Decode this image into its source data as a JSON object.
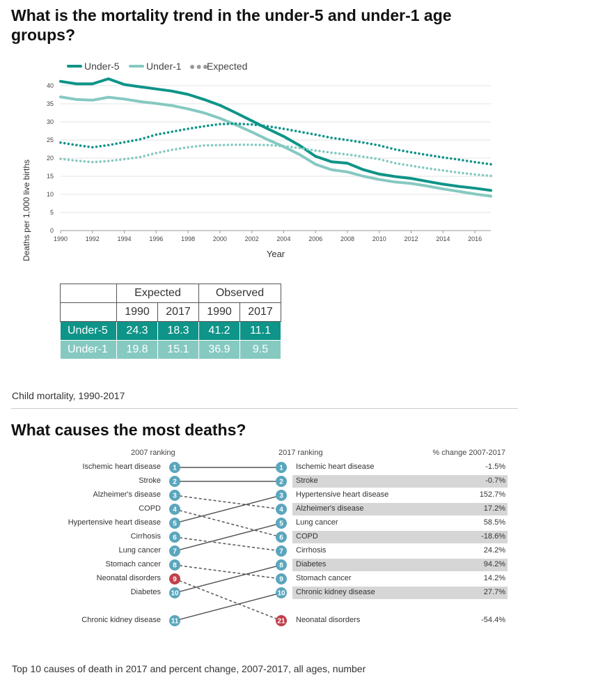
{
  "mortality": {
    "title": "What is the mortality trend in the under-5 and under-1 age groups?",
    "caption": "Child mortality, 1990-2017",
    "legend": {
      "under5": "Under-5",
      "under1": "Under-1",
      "expected": "Expected"
    },
    "colors": {
      "under5": "#0e9488",
      "under1": "#86c9c1",
      "expected": "#999999"
    },
    "table": {
      "group_expected": "Expected",
      "group_observed": "Observed",
      "years": [
        "1990",
        "2017",
        "1990",
        "2017"
      ],
      "rows": [
        {
          "label": "Under-5",
          "values": [
            "24.3",
            "18.3",
            "41.2",
            "11.1"
          ]
        },
        {
          "label": "Under-1",
          "values": [
            "19.8",
            "15.1",
            "36.9",
            "9.5"
          ]
        }
      ]
    }
  },
  "chart_data": {
    "type": "line",
    "xlabel": "Year",
    "ylabel": "Deaths per 1,000 live births",
    "xlim": [
      1990,
      2017
    ],
    "ylim": [
      0,
      40
    ],
    "yticks": [
      0,
      5,
      10,
      15,
      20,
      25,
      30,
      35,
      40
    ],
    "xticks": [
      1990,
      1992,
      1994,
      1996,
      1998,
      2000,
      2002,
      2004,
      2006,
      2008,
      2010,
      2012,
      2014,
      2016
    ],
    "grid": true,
    "legend_position": "top-left",
    "x": [
      1990,
      1991,
      1992,
      1993,
      1994,
      1995,
      1996,
      1997,
      1998,
      1999,
      2000,
      2001,
      2002,
      2003,
      2004,
      2005,
      2006,
      2007,
      2008,
      2009,
      2010,
      2011,
      2012,
      2013,
      2014,
      2015,
      2016,
      2017
    ],
    "series": [
      {
        "name": "Under-5",
        "style": "solid",
        "values": [
          41.2,
          40.5,
          40.5,
          41.9,
          40.3,
          39.7,
          39.1,
          38.5,
          37.6,
          36.2,
          34.6,
          32.5,
          30.3,
          28.1,
          26.0,
          23.5,
          20.5,
          19.0,
          18.6,
          16.8,
          15.6,
          14.9,
          14.4,
          13.6,
          12.8,
          12.2,
          11.7,
          11.1
        ]
      },
      {
        "name": "Under-1",
        "style": "solid",
        "values": [
          36.9,
          36.2,
          36.0,
          36.8,
          36.3,
          35.6,
          35.1,
          34.5,
          33.6,
          32.5,
          31.0,
          29.2,
          27.2,
          25.1,
          23.2,
          21.0,
          18.3,
          16.8,
          16.2,
          15.0,
          14.1,
          13.4,
          13.0,
          12.3,
          11.5,
          10.8,
          10.1,
          9.5
        ]
      },
      {
        "name": "Expected",
        "style": "dotted",
        "group": "Under-5",
        "values": [
          24.3,
          23.6,
          23.0,
          23.6,
          24.4,
          25.2,
          26.5,
          27.3,
          28.1,
          28.8,
          29.4,
          29.5,
          29.3,
          28.8,
          28.1,
          27.3,
          26.5,
          25.6,
          25.0,
          24.3,
          23.5,
          22.4,
          21.6,
          20.9,
          20.2,
          19.6,
          18.9,
          18.3
        ]
      },
      {
        "name": "Expected",
        "style": "dotted",
        "group": "Under-1",
        "values": [
          19.8,
          19.3,
          18.9,
          19.2,
          19.7,
          20.3,
          21.4,
          22.3,
          23.0,
          23.5,
          23.6,
          23.7,
          23.7,
          23.6,
          23.3,
          22.8,
          22.1,
          21.5,
          21.0,
          20.4,
          19.7,
          18.6,
          17.9,
          17.2,
          16.6,
          16.0,
          15.5,
          15.1
        ]
      }
    ]
  },
  "causes": {
    "title": "What causes the most deaths?",
    "caption": "Top 10 causes of death in 2017 and percent change, 2007-2017, all ages, number",
    "header_2007": "2007 ranking",
    "header_2017": "2017 ranking",
    "header_pct": "% change 2007-2017",
    "colors": {
      "node": "#5aa6bd",
      "node_highlight": "#c0404a"
    },
    "left": [
      {
        "name": "Ischemic heart disease",
        "rank": "1"
      },
      {
        "name": "Stroke",
        "rank": "2"
      },
      {
        "name": "Alzheimer's disease",
        "rank": "3"
      },
      {
        "name": "COPD",
        "rank": "4"
      },
      {
        "name": "Hypertensive heart disease",
        "rank": "5"
      },
      {
        "name": "Cirrhosis",
        "rank": "6"
      },
      {
        "name": "Lung cancer",
        "rank": "7"
      },
      {
        "name": "Stomach cancer",
        "rank": "8"
      },
      {
        "name": "Neonatal disorders",
        "rank": "9",
        "highlight": true
      },
      {
        "name": "Diabetes",
        "rank": "10"
      },
      {
        "name": "Chronic kidney disease",
        "rank": "11"
      }
    ],
    "right": [
      {
        "name": "Ischemic heart disease",
        "rank": "1",
        "pct": "-1.5%"
      },
      {
        "name": "Stroke",
        "rank": "2",
        "pct": "-0.7%"
      },
      {
        "name": "Hypertensive heart disease",
        "rank": "3",
        "pct": "152.7%"
      },
      {
        "name": "Alzheimer's disease",
        "rank": "4",
        "pct": "17.2%"
      },
      {
        "name": "Lung cancer",
        "rank": "5",
        "pct": "58.5%"
      },
      {
        "name": "COPD",
        "rank": "6",
        "pct": "-18.6%"
      },
      {
        "name": "Cirrhosis",
        "rank": "7",
        "pct": "24.2%"
      },
      {
        "name": "Diabetes",
        "rank": "8",
        "pct": "94.2%"
      },
      {
        "name": "Stomach cancer",
        "rank": "9",
        "pct": "14.2%"
      },
      {
        "name": "Chronic kidney disease",
        "rank": "10",
        "pct": "27.7%"
      },
      {
        "name": "Neonatal disorders",
        "rank": "21",
        "pct": "-54.4%",
        "highlight": true
      }
    ]
  }
}
